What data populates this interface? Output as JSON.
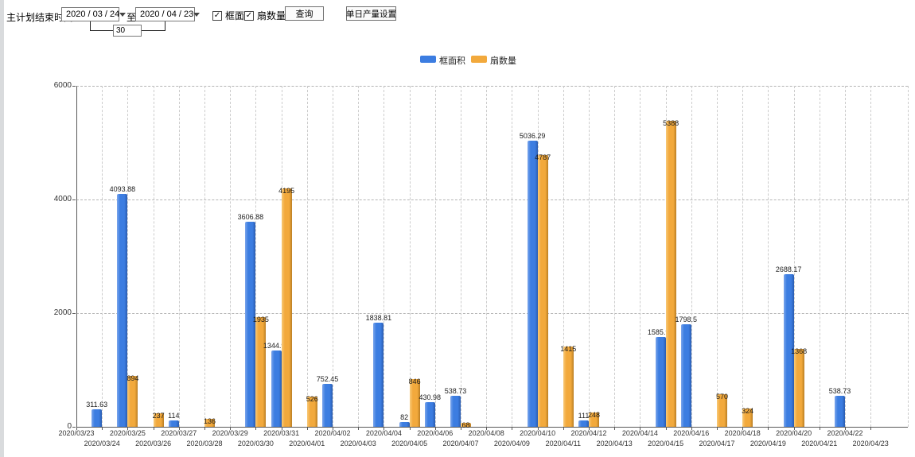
{
  "toolbar": {
    "plan_end_label": "主计划结束时间:",
    "start_date": "2020 / 03 / 24",
    "to_label": "至:",
    "end_date": "2020 / 04 / 23",
    "day_span": "30",
    "frame_area_checkbox": "框面积",
    "fan_count_checkbox": "扇数量",
    "checkbox_states": {
      "frame_area": true,
      "fan_count": true
    },
    "query_button": "查询",
    "daily_output_button": "单日产量设置"
  },
  "legend": {
    "items": [
      {
        "label": "框面积",
        "color": "#3c7de1"
      },
      {
        "label": "扇数量",
        "color": "#f2a93c"
      }
    ]
  },
  "chart_data": {
    "type": "bar",
    "title": "",
    "xlabel": "",
    "ylabel": "",
    "ylim": [
      0,
      6000
    ],
    "yticks": [
      0,
      2000,
      4000,
      6000
    ],
    "grid": true,
    "legend_position": "top",
    "categories": [
      "2020/03/23",
      "2020/03/24",
      "2020/03/25",
      "2020/03/26",
      "2020/03/27",
      "2020/03/28",
      "2020/03/29",
      "2020/03/30",
      "2020/03/31",
      "2020/04/01",
      "2020/04/02",
      "2020/04/03",
      "2020/04/04",
      "2020/04/05",
      "2020/04/06",
      "2020/04/07",
      "2020/04/08",
      "2020/04/09",
      "2020/04/10",
      "2020/04/11",
      "2020/04/12",
      "2020/04/13",
      "2020/04/14",
      "2020/04/15",
      "2020/04/16",
      "2020/04/17",
      "2020/04/18",
      "2020/04/19",
      "2020/04/20",
      "2020/04/21",
      "2020/04/22",
      "2020/04/23"
    ],
    "series": [
      {
        "name": "框面积",
        "color": "#3c7de1",
        "values": [
          null,
          311.63,
          4093.88,
          null,
          114,
          null,
          null,
          3606.88,
          1344.95,
          null,
          752.45,
          null,
          1838.81,
          82,
          430.98,
          538.73,
          null,
          null,
          5036.29,
          null,
          111,
          null,
          null,
          1585.96,
          1798.5,
          null,
          null,
          null,
          2688.17,
          null,
          538.73,
          null
        ]
      },
      {
        "name": "扇数量",
        "color": "#f2a93c",
        "values": [
          null,
          null,
          894,
          237,
          null,
          136,
          null,
          1935,
          4195,
          526,
          null,
          null,
          null,
          846,
          null,
          68,
          null,
          null,
          4787,
          1415,
          248,
          null,
          null,
          5388,
          null,
          570,
          324,
          null,
          1368,
          null,
          null,
          null
        ]
      }
    ]
  }
}
